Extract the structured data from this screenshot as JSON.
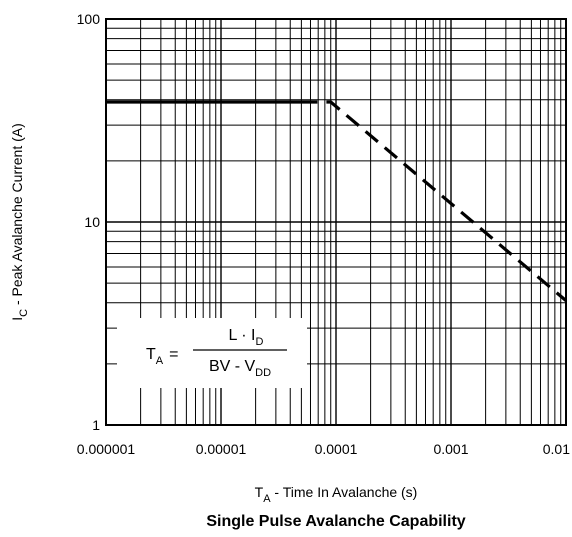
{
  "chart_data": {
    "type": "line",
    "title": "Single Pulse Avalanche Capability",
    "x_scale": "log",
    "y_scale": "log",
    "xlim": [
      1e-06,
      0.01
    ],
    "ylim": [
      1,
      100
    ],
    "grid": true,
    "x_tick_labels": [
      "0.000001",
      "0.00001",
      "0.0001",
      "0.001",
      "0.01"
    ],
    "y_tick_labels": [
      "1",
      "10",
      "100"
    ],
    "xlabel": {
      "main": "T",
      "sub": "A",
      "rest": " - Time In Avalanche (s)"
    },
    "ylabel": {
      "main": "I",
      "sub": "C",
      "rest": " - Peak Avalanche Current (A)"
    },
    "series": [
      {
        "style": "solid",
        "x": [
          1e-06,
          5e-05
        ],
        "y": [
          39,
          39
        ]
      },
      {
        "style": "dashed",
        "x": [
          5e-05,
          9e-05,
          0.01
        ],
        "y": [
          39,
          39,
          4.1
        ]
      }
    ],
    "annotation": {
      "lhs_main": "T",
      "lhs_sub": "A",
      "eq": "=",
      "num_main": "L · I",
      "num_sub": "D",
      "den_main": "BV - V",
      "den_sub": "DD"
    }
  }
}
